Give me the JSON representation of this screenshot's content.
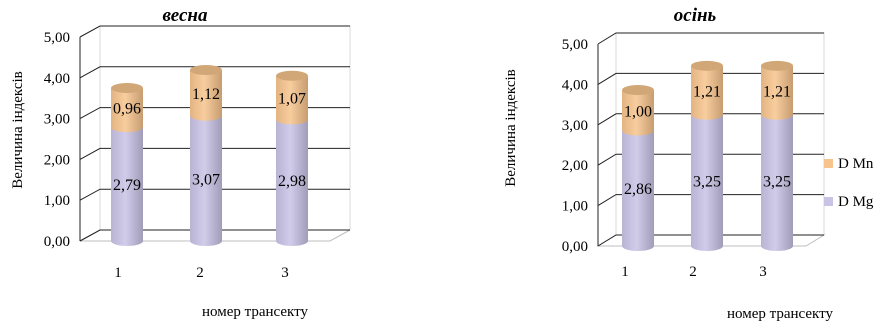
{
  "chart_data": [
    {
      "type": "bar",
      "stacked": true,
      "style": "3d-cylinder",
      "title": "весна",
      "xlabel": "номер трансекту",
      "ylabel": "Величина індексів",
      "categories": [
        "1",
        "2",
        "3"
      ],
      "ylim": [
        0,
        5
      ],
      "yticks": [
        "0,00",
        "1,00",
        "2,00",
        "3,00",
        "4,00",
        "5,00"
      ],
      "series": [
        {
          "name": "D Mg",
          "values": [
            2.79,
            3.07,
            2.98
          ],
          "labels": [
            "2,79",
            "3,07",
            "2,98"
          ],
          "color": "#c9c3e6"
        },
        {
          "name": "D Mn",
          "values": [
            0.96,
            1.12,
            1.07
          ],
          "labels": [
            "0,96",
            "1,12",
            "1,07"
          ],
          "color": "#f7c48d"
        }
      ],
      "legend": "none"
    },
    {
      "type": "bar",
      "stacked": true,
      "style": "3d-cylinder",
      "title": "осінь",
      "xlabel": "номер трансекту",
      "ylabel": "Величина індексів",
      "categories": [
        "1",
        "2",
        "3"
      ],
      "ylim": [
        0,
        5
      ],
      "yticks": [
        "0,00",
        "1,00",
        "2,00",
        "3,00",
        "4,00",
        "5,00"
      ],
      "series": [
        {
          "name": "D Mg",
          "values": [
            2.86,
            3.25,
            3.25
          ],
          "labels": [
            "2,86",
            "3,25",
            "3,25"
          ],
          "color": "#c9c3e6"
        },
        {
          "name": "D Mn",
          "values": [
            1.0,
            1.21,
            1.21
          ],
          "labels": [
            "1,00",
            "1,21",
            "1,21"
          ],
          "color": "#f7c48d"
        }
      ],
      "legend": "right",
      "legend_entries": [
        "D Mn",
        "D Mg"
      ]
    }
  ]
}
